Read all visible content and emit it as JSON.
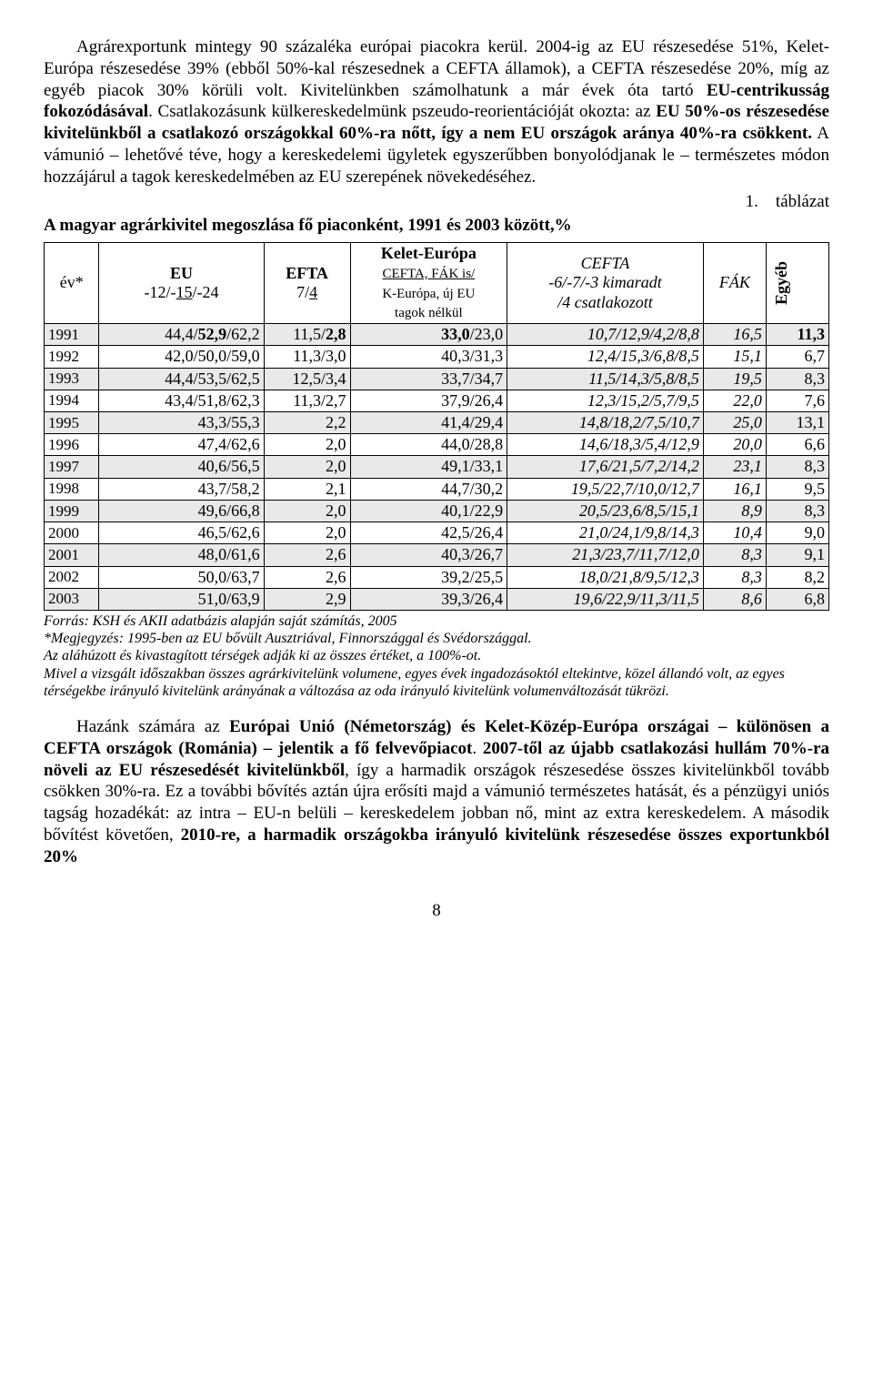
{
  "para1_html": "Agrárexportunk mintegy 90 százaléka európai piacokra kerül. 2004-ig az EU részesedése 51%, Kelet-Európa részesedése 39% (ebből 50%-kal részesednek a CEFTA államok), a CEFTA részesedése 20%, míg az egyéb piacok 30% körüli volt. Kivitelünkben számolhatunk a már évek óta tartó <span class=\"bold\">EU-centrikusság fokozódásával</span>. Csatlakozásunk külkereskedelmünk pszeudo-reorientációját okozta: az <span class=\"bold\">EU 50%-os részesedése kivitelünkből a csatlakozó országokkal 60%-ra nőtt, így a nem EU országok aránya 40%-ra csökkent.</span> A vámunió – lehetővé téve, hogy a kereskedelemi ügyletek egyszerűbben bonyolódjanak le – természetes módon hozzájárul a tagok kereskedelmében az EU szerepének növekedéséhez.",
  "table_caption": "1. táblázat",
  "table_title": "A magyar agrárkivitel megoszlása fő piaconként, 1991 és 2003 között,%",
  "headers": {
    "year": "év*",
    "eu_html": "<span class=\"bold\">EU</span><br>-12/-<span class=\"ul\">15</span>/-24",
    "efta_html": "<span class=\"bold\">EFTA</span><br>7/<span class=\"ul\">4</span>",
    "kelet_html": "<span class=\"bold\">Kelet-Európa</span><br><span class=\"hdr-sub\">CEFTA, FÁK is/</span><br><span class=\"hdr-sub\" style=\"text-decoration:none;font-size:15px;\">K-Európa, új EU<br>tagok nélkül</span>",
    "cefta_html": "<span class=\"it\">CEFTA<br>-6/-7/-3 kimaradt<br>/4 csatlakozott</span>",
    "fak": "FÁK",
    "egyeb": "Egyéb"
  },
  "rows": [
    {
      "shade": true,
      "y": "1991",
      "eu": "44,4/<span class=\"bold\">52,9</span>/62,2",
      "efta": "11,5/<span class=\"bold\">2,8</span>",
      "ke": "<span class=\"bold\">33,0</span>/23,0",
      "cf": "<span class=\"it\">10,7/12,9/4,2/8,8</span>",
      "fak": "<span class=\"it\">16,5</span>",
      "eg": "<span class=\"bold\">11,3</span>"
    },
    {
      "shade": false,
      "y": "1992",
      "eu": "42,0/50,0/59,0",
      "efta": "11,3/3,0",
      "ke": "40,3/31,3",
      "cf": "<span class=\"it\">12,4/15,3/6,8/8,5</span>",
      "fak": "<span class=\"it\">15,1</span>",
      "eg": "6,7"
    },
    {
      "shade": true,
      "y": "1993",
      "eu": "44,4/53,5/62,5",
      "efta": "12,5/3,4",
      "ke": "33,7/34,7",
      "cf": "<span class=\"it\">11,5/14,3/5,8/8,5</span>",
      "fak": "<span class=\"it\">19,5</span>",
      "eg": "8,3"
    },
    {
      "shade": false,
      "y": "1994",
      "eu": "43,4/51,8/62,3",
      "efta": "11,3/2,7",
      "ke": "37,9/26,4",
      "cf": "<span class=\"it\">12,3/15,2/5,7/9,5</span>",
      "fak": "<span class=\"it\">22,0</span>",
      "eg": "7,6"
    },
    {
      "shade": true,
      "y": "1995",
      "eu": "43,3/55,3",
      "efta": "2,2",
      "ke": "41,4/29,4",
      "cf": "<span class=\"it\">14,8/18,2/7,5/10,7</span>",
      "fak": "<span class=\"it\">25,0</span>",
      "eg": "13,1"
    },
    {
      "shade": false,
      "y": "1996",
      "eu": "47,4/62,6",
      "efta": "2,0",
      "ke": "44,0/28,8",
      "cf": "<span class=\"it\">14,6/18,3/5,4/12,9</span>",
      "fak": "<span class=\"it\">20,0</span>",
      "eg": "6,6"
    },
    {
      "shade": true,
      "y": "1997",
      "eu": "40,6/56,5",
      "efta": "2,0",
      "ke": "49,1/33,1",
      "cf": "<span class=\"it\">17,6/21,5/7,2/14,2</span>",
      "fak": "<span class=\"it\">23,1</span>",
      "eg": "8,3"
    },
    {
      "shade": false,
      "y": "1998",
      "eu": "43,7/58,2",
      "efta": "2,1",
      "ke": "44,7/30,2",
      "cf": "<span class=\"it\">19,5/22,7/10,0/12,7</span>",
      "fak": "<span class=\"it\">16,1</span>",
      "eg": "9,5"
    },
    {
      "shade": true,
      "y": "1999",
      "eu": "49,6/66,8",
      "efta": "2,0",
      "ke": "40,1/22,9",
      "cf": "<span class=\"it\">20,5/23,6/8,5/15,1</span>",
      "fak": "<span class=\"it\">8,9</span>",
      "eg": "8,3"
    },
    {
      "shade": false,
      "y": "2000",
      "eu": "46,5/62,6",
      "efta": "2,0",
      "ke": "42,5/26,4",
      "cf": "<span class=\"it\">21,0/24,1/9,8/14,3</span>",
      "fak": "<span class=\"it\">10,4</span>",
      "eg": "9,0"
    },
    {
      "shade": true,
      "y": "2001",
      "eu": "48,0/61,6",
      "efta": "2,6",
      "ke": "40,3/26,7",
      "cf": "<span class=\"it\">21,3/23,7/11,7/12,0</span>",
      "fak": "<span class=\"it\">8,3</span>",
      "eg": "9,1"
    },
    {
      "shade": false,
      "y": "2002",
      "eu": "50,0/63,7",
      "efta": "2,6",
      "ke": "39,2/25,5",
      "cf": "<span class=\"it\">18,0/21,8/9,5/12,3</span>",
      "fak": "<span class=\"it\">8,3</span>",
      "eg": "8,2"
    },
    {
      "shade": true,
      "y": "2003",
      "eu": "51,0/63,9",
      "efta": "2,9",
      "ke": "39,3/26,4",
      "cf": "<span class=\"it\">19,6/22,9/11,3/11,5</span>",
      "fak": "<span class=\"it\">8,6</span>",
      "eg": "6,8"
    }
  ],
  "notes_html": "Forrás: KSH és AKII adatbázis alapján saját számítás, 2005<br>*Megjegyzés: 1995-ben az EU bővült Ausztriával, Finnországgal és Svédországgal.<br>Az aláhúzott és kivastagított térségek adják ki az összes értéket, a 100%-ot.<br>Mivel a vizsgált időszakban összes agrárkivitelünk volumene, egyes évek ingadozásoktól eltekintve, közel állandó volt, az egyes térségekbe irányuló kivitelünk arányának a változása az oda irányuló kivitelünk volumenváltozását tükrözi.",
  "para2_html": "Hazánk számára az <span class=\"bold\">Európai Unió (Németország) és Kelet-Közép-Európa országai – különösen a CEFTA országok (Románia) – jelentik a fő felvevőpiacot</span>. <span class=\"bold\">2007-től az újabb csatlakozási hullám 70%-ra növeli az EU részesedését kivitelünkből</span>, így a harmadik országok részesedése összes kivitelünkből tovább csökken 30%-ra. Ez a további bővítés aztán újra erősíti majd a vámunió természetes hatását, és a pénzügyi uniós tagság hozadékát: az intra – EU-n belüli – kereskedelem jobban nő, mint az extra kereskedelem. A második bővítést követően, <span class=\"bold\">2010-re, a harmadik országokba irányuló kivitelünk részesedése összes exportunkból 20%</span>",
  "page_number": "8",
  "colwidths": {
    "year": "7%",
    "eu": "21%",
    "efta": "11%",
    "ke": "20%",
    "cf": "25%",
    "fak": "8%",
    "eg": "8%"
  },
  "colors": {
    "shade": "#e9e9e9",
    "text": "#000000",
    "bg": "#ffffff"
  }
}
